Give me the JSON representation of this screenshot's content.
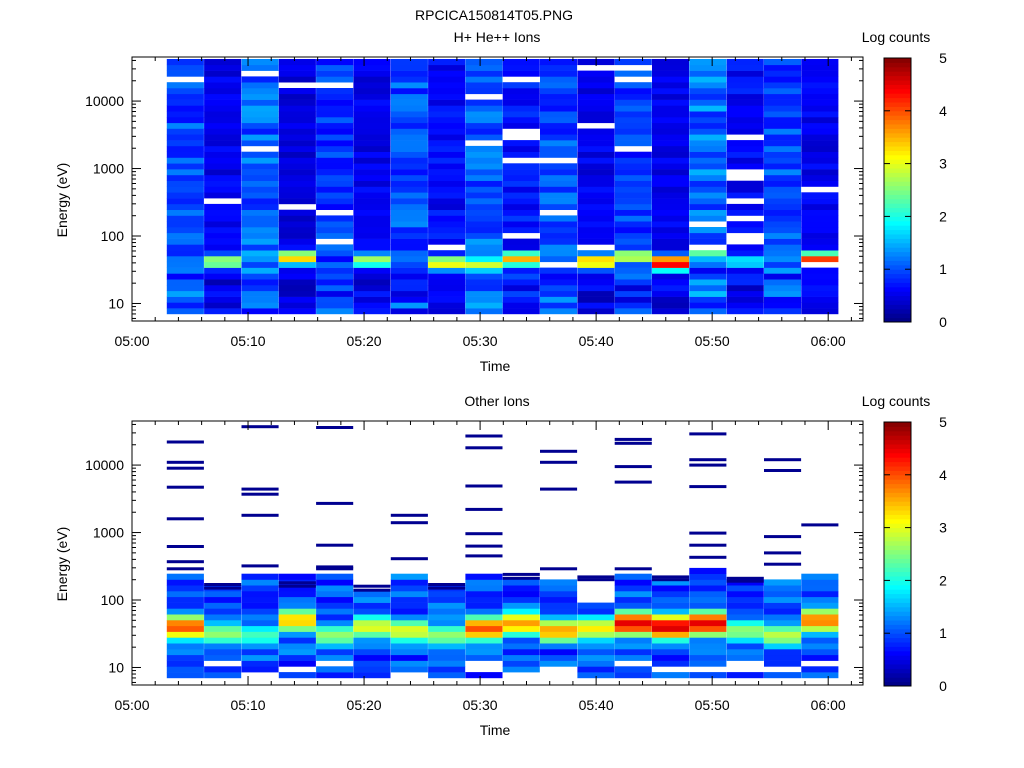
{
  "figure": {
    "title": "RPCICA150814T05.PNG"
  },
  "chart_data": [
    {
      "type": "heatmap",
      "title": "H+ He++ Ions",
      "xlabel": "Time",
      "ylabel": "Energy (eV)",
      "x_ticks": [
        "05:00",
        "05:10",
        "05:20",
        "05:30",
        "05:40",
        "05:50",
        "06:00"
      ],
      "xlim": [
        "05:00",
        "06:03"
      ],
      "y_scale": "log",
      "ylim": [
        5.5,
        45000
      ],
      "y_ticks": [
        "10",
        "100",
        "1000",
        "10000"
      ],
      "colorbar": {
        "label": "Log counts",
        "range": [
          0,
          5
        ],
        "ticks": [
          "0",
          "1",
          "2",
          "3",
          "4",
          "5"
        ],
        "colormap": "jet"
      },
      "time_bins": [
        "05:03:00",
        "05:06:13",
        "05:09:26",
        "05:12:39",
        "05:15:52",
        "05:19:05",
        "05:22:18",
        "05:25:31",
        "05:28:44",
        "05:31:57",
        "05:35:10",
        "05:38:23",
        "05:41:36",
        "05:44:49",
        "05:48:02",
        "05:51:15",
        "05:54:28",
        "05:57:41"
      ],
      "bin_width_minutes": 3.2,
      "peak_log_counts": [
        1.2,
        2.8,
        1.5,
        3.4,
        1.1,
        2.7,
        1.2,
        3.2,
        2.9,
        3.5,
        1.3,
        3.6,
        3.0,
        4.6,
        2.5,
        1.9,
        1.2,
        4.1
      ],
      "peak_energy_eV": [
        45,
        42,
        55,
        48,
        60,
        44,
        52,
        40,
        38,
        46,
        55,
        42,
        50,
        40,
        60,
        42,
        55,
        45
      ],
      "background_log_counts": [
        1.1,
        0.6,
        1.2,
        0.5,
        1.0,
        0.6,
        1.1,
        0.7,
        1.2,
        0.8,
        1.1,
        0.6,
        1.0,
        0.6,
        1.3,
        0.7,
        1.1,
        0.6
      ]
    },
    {
      "type": "heatmap",
      "title": "Other Ions",
      "xlabel": "Time",
      "ylabel": "Energy (eV)",
      "x_ticks": [
        "05:00",
        "05:10",
        "05:20",
        "05:30",
        "05:40",
        "05:50",
        "06:00"
      ],
      "xlim": [
        "05:00",
        "06:03"
      ],
      "y_scale": "log",
      "ylim": [
        5.5,
        45000
      ],
      "y_ticks": [
        "10",
        "100",
        "1000",
        "10000"
      ],
      "colorbar": {
        "label": "Log counts",
        "range": [
          0,
          5
        ],
        "ticks": [
          "0",
          "1",
          "2",
          "3",
          "4",
          "5"
        ],
        "colormap": "jet"
      },
      "time_bins": [
        "05:03:00",
        "05:06:13",
        "05:09:26",
        "05:12:39",
        "05:15:52",
        "05:19:05",
        "05:22:18",
        "05:25:31",
        "05:28:44",
        "05:31:57",
        "05:35:10",
        "05:38:23",
        "05:41:36",
        "05:44:49",
        "05:48:02",
        "05:51:15",
        "05:54:28",
        "05:57:41"
      ],
      "bin_width_minutes": 3.2,
      "peak_log_counts": [
        4.0,
        2.6,
        2.2,
        3.4,
        2.6,
        3.0,
        3.0,
        2.6,
        4.0,
        3.6,
        3.6,
        3.2,
        4.5,
        4.6,
        4.5,
        2.6,
        2.8,
        3.8
      ],
      "peak_energy_eV": [
        40,
        32,
        30,
        50,
        30,
        40,
        35,
        30,
        38,
        45,
        35,
        38,
        45,
        40,
        45,
        35,
        30,
        50
      ],
      "top_energy_eV": [
        230,
        170,
        230,
        250,
        230,
        140,
        270,
        170,
        250,
        220,
        220,
        90,
        240,
        220,
        300,
        200,
        220,
        250
      ],
      "sparse_energy_lines_eV": [
        [
          22000,
          11000,
          9000,
          4700,
          1600,
          620,
          370,
          290
        ],
        [
          170,
          150
        ],
        [
          37000,
          4400,
          3700,
          1800,
          320
        ],
        [
          180,
          160
        ],
        [
          36000,
          2700,
          650,
          310,
          290
        ],
        [
          160,
          140
        ],
        [
          1800,
          1400,
          410
        ],
        [
          170,
          150
        ],
        [
          27000,
          18000,
          4900,
          2200,
          960,
          630,
          450
        ],
        [
          240,
          210
        ],
        [
          16000,
          11000,
          4400,
          290
        ],
        [
          220,
          200
        ],
        [
          24000,
          21000,
          9500,
          5600,
          290
        ],
        [
          220,
          200
        ],
        [
          29000,
          12000,
          10000,
          4800,
          980,
          650,
          430
        ],
        [
          210,
          190
        ],
        [
          12000,
          8300,
          870,
          500,
          340
        ],
        [
          1300
        ]
      ]
    }
  ]
}
